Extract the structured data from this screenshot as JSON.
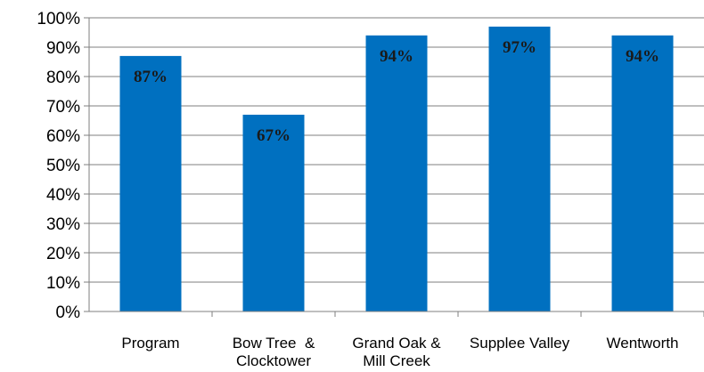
{
  "chart_data": {
    "type": "bar",
    "categories": [
      [
        "Program"
      ],
      [
        "Bow Tree  &",
        "Clocktower"
      ],
      [
        "Grand Oak &",
        "Mill Creek"
      ],
      [
        "Supplee Valley"
      ],
      [
        "Wentworth"
      ]
    ],
    "values": [
      87,
      67,
      94,
      97,
      94
    ],
    "data_labels": [
      "87%",
      "67%",
      "94%",
      "97%",
      "94%"
    ],
    "yticks": [
      "0%",
      "10%",
      "20%",
      "30%",
      "40%",
      "50%",
      "60%",
      "70%",
      "80%",
      "90%",
      "100%"
    ],
    "ylim": [
      0,
      100
    ],
    "grid": true,
    "bar_color": "#0070C0",
    "title": "",
    "xlabel": "",
    "ylabel": ""
  }
}
